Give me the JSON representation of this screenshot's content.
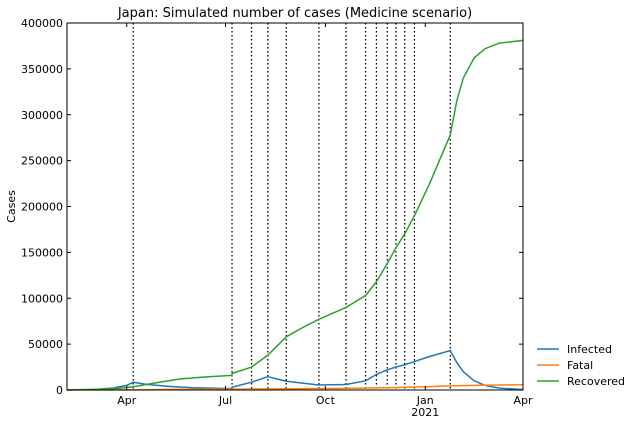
{
  "chart_data": {
    "type": "line",
    "title": "Japan: Simulated number of cases (Medicine scenario)",
    "ylabel": "Cases",
    "xlabel": "",
    "xlim": [
      "2020-02-06",
      "2021-04-01"
    ],
    "ylim": [
      0,
      400000
    ],
    "y_ticks": [
      0,
      50000,
      100000,
      150000,
      200000,
      250000,
      300000,
      350000,
      400000
    ],
    "x_ticks": [
      {
        "date": "2020-04-01",
        "label": "Apr",
        "sublabel": ""
      },
      {
        "date": "2020-07-01",
        "label": "Jul",
        "sublabel": ""
      },
      {
        "date": "2020-10-01",
        "label": "Oct",
        "sublabel": ""
      },
      {
        "date": "2021-01-01",
        "label": "Jan",
        "sublabel": "2021"
      },
      {
        "date": "2021-04-01",
        "label": "Apr",
        "sublabel": ""
      }
    ],
    "grid": false,
    "legend_position": "lower-right-outside",
    "change_points": [
      "2020-04-07",
      "2020-07-07",
      "2020-07-25",
      "2020-08-09",
      "2020-08-26",
      "2020-09-25",
      "2020-10-20",
      "2020-11-07",
      "2020-11-17",
      "2020-11-27",
      "2020-12-05",
      "2020-12-13",
      "2020-12-22",
      "2021-01-24"
    ],
    "series": [
      {
        "name": "Infected",
        "color": "#1f77b4",
        "points": [
          [
            "2020-02-06",
            100
          ],
          [
            "2020-03-01",
            400
          ],
          [
            "2020-03-20",
            2200
          ],
          [
            "2020-04-01",
            5000
          ],
          [
            "2020-04-07",
            8500
          ],
          [
            "2020-04-20",
            6000
          ],
          [
            "2020-05-10",
            4000
          ],
          [
            "2020-06-01",
            2500
          ],
          [
            "2020-07-07",
            1500
          ],
          [
            "2020-07-07",
            3000
          ],
          [
            "2020-07-25",
            8500
          ],
          [
            "2020-08-09",
            14500
          ],
          [
            "2020-08-26",
            9500
          ],
          [
            "2020-09-25",
            5500
          ],
          [
            "2020-10-20",
            6000
          ],
          [
            "2020-11-07",
            10000
          ],
          [
            "2020-11-17",
            17000
          ],
          [
            "2020-11-27",
            22000
          ],
          [
            "2020-12-05",
            25000
          ],
          [
            "2020-12-13",
            27500
          ],
          [
            "2020-12-22",
            31000
          ],
          [
            "2021-01-05",
            36500
          ],
          [
            "2021-01-24",
            43000
          ],
          [
            "2021-01-30",
            30000
          ],
          [
            "2021-02-05",
            20000
          ],
          [
            "2021-02-15",
            10000
          ],
          [
            "2021-02-25",
            5000
          ],
          [
            "2021-03-10",
            2000
          ],
          [
            "2021-04-01",
            600
          ]
        ]
      },
      {
        "name": "Fatal",
        "color": "#ff7f0e",
        "points": [
          [
            "2020-02-06",
            0
          ],
          [
            "2020-04-01",
            200
          ],
          [
            "2020-05-15",
            700
          ],
          [
            "2020-07-07",
            1000
          ],
          [
            "2020-09-01",
            1300
          ],
          [
            "2020-10-20",
            1800
          ],
          [
            "2020-12-01",
            2600
          ],
          [
            "2021-01-01",
            3500
          ],
          [
            "2021-01-24",
            4500
          ],
          [
            "2021-02-20",
            5200
          ],
          [
            "2021-04-01",
            5700
          ]
        ]
      },
      {
        "name": "Recovered",
        "color": "#2ca02c",
        "points": [
          [
            "2020-02-06",
            200
          ],
          [
            "2020-03-01",
            700
          ],
          [
            "2020-03-20",
            1300
          ],
          [
            "2020-04-07",
            3500
          ],
          [
            "2020-05-01",
            8500
          ],
          [
            "2020-05-20",
            12000
          ],
          [
            "2020-06-10",
            14000
          ],
          [
            "2020-07-07",
            16000
          ],
          [
            "2020-07-07",
            18000
          ],
          [
            "2020-07-25",
            25000
          ],
          [
            "2020-08-09",
            38000
          ],
          [
            "2020-08-26",
            58000
          ],
          [
            "2020-09-10",
            68000
          ],
          [
            "2020-09-25",
            77000
          ],
          [
            "2020-10-20",
            90000
          ],
          [
            "2020-11-07",
            103000
          ],
          [
            "2020-11-17",
            118000
          ],
          [
            "2020-11-27",
            138000
          ],
          [
            "2020-12-05",
            155000
          ],
          [
            "2020-12-13",
            170000
          ],
          [
            "2020-12-22",
            190000
          ],
          [
            "2021-01-05",
            225000
          ],
          [
            "2021-01-24",
            278000
          ],
          [
            "2021-01-30",
            315000
          ],
          [
            "2021-02-05",
            340000
          ],
          [
            "2021-02-15",
            362000
          ],
          [
            "2021-02-25",
            372000
          ],
          [
            "2021-03-10",
            378000
          ],
          [
            "2021-04-01",
            381000
          ]
        ]
      }
    ]
  }
}
